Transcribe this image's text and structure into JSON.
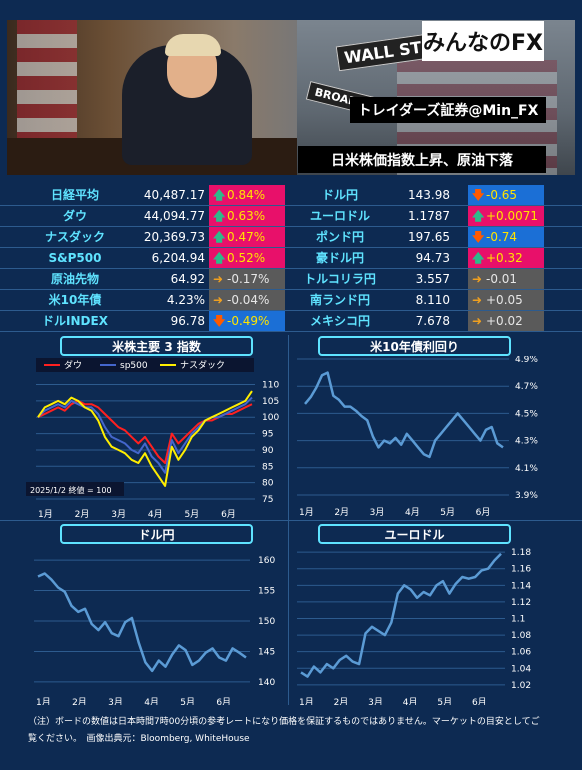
{
  "header": {
    "logo": "みんなのFX",
    "badge_account": "トレイダーズ証券@Min_FX",
    "headline": "日米株価指数上昇、原油下落",
    "sign_wall": "WALL ST",
    "sign_broad": "BROAD ST"
  },
  "table": {
    "rows": [
      {
        "l_name": "日経平均",
        "l_val": "40,487.17",
        "l_chg": "0.84%",
        "l_dir": "up",
        "r_name": "ドル円",
        "r_val": "143.98",
        "r_chg": "-0.65",
        "r_dir": "down"
      },
      {
        "l_name": "ダウ",
        "l_val": "44,094.77",
        "l_chg": "0.63%",
        "l_dir": "up",
        "r_name": "ユーロドル",
        "r_val": "1.1787",
        "r_chg": "+0.0071",
        "r_dir": "up"
      },
      {
        "l_name": "ナスダック",
        "l_val": "20,369.73",
        "l_chg": "0.47%",
        "l_dir": "up",
        "r_name": "ポンド円",
        "r_val": "197.65",
        "r_chg": "-0.74",
        "r_dir": "down"
      },
      {
        "l_name": "S&P500",
        "l_val": "6,204.94",
        "l_chg": "0.52%",
        "l_dir": "up",
        "r_name": "豪ドル円",
        "r_val": "94.73",
        "r_chg": "+0.32",
        "r_dir": "up"
      },
      {
        "l_name": "原油先物",
        "l_val": "64.92",
        "l_chg": "-0.17%",
        "l_dir": "flat",
        "r_name": "トルコリラ円",
        "r_val": "3.557",
        "r_chg": "-0.01",
        "r_dir": "flat"
      },
      {
        "l_name": "米10年債",
        "l_val": "4.23%",
        "l_chg": "-0.04%",
        "l_dir": "flat",
        "r_name": "南ランド円",
        "r_val": "8.110",
        "r_chg": "+0.05",
        "r_dir": "flat"
      },
      {
        "l_name": "ドルINDEX",
        "l_val": "96.78",
        "l_chg": "-0.49%",
        "l_dir": "down",
        "r_name": "メキシコ円",
        "r_val": "7.678",
        "r_chg": "+0.02",
        "r_dir": "flat"
      }
    ]
  },
  "colors": {
    "up": "#e8106a",
    "down": "#1b6fd6",
    "flat": "#5a5a5a",
    "accent": "#5fe3ff",
    "line": "#5b9bd5"
  },
  "chart_data": [
    {
      "type": "line",
      "title": "米株主要 3 指数",
      "annotation": "2025/1/2 終値 = 100",
      "x_ticks": [
        "1月",
        "2月",
        "3月",
        "4月",
        "5月",
        "6月"
      ],
      "y_ticks": [
        75,
        80,
        85,
        90,
        95,
        100,
        105,
        110
      ],
      "ylim": [
        75,
        112
      ],
      "series": [
        {
          "name": "ダウ",
          "color": "#ff2020",
          "values": [
            100,
            101,
            102,
            103,
            102,
            104,
            105,
            104,
            104,
            103,
            101,
            99,
            97,
            96,
            94,
            92,
            94,
            91,
            88,
            86,
            95,
            92,
            94,
            96,
            98,
            99,
            99,
            100,
            101,
            101,
            102,
            103,
            104
          ]
        },
        {
          "name": "sp500",
          "color": "#4466cc",
          "values": [
            100,
            102,
            103,
            104,
            103,
            105,
            104,
            103,
            103,
            101,
            97,
            94,
            93,
            92,
            90,
            89,
            92,
            88,
            86,
            83,
            93,
            89,
            92,
            95,
            97,
            99,
            100,
            100,
            101,
            102,
            103,
            104,
            106
          ]
        },
        {
          "name": "ナスダック",
          "color": "#ffee00",
          "values": [
            100,
            103,
            104,
            105,
            104,
            106,
            105,
            103,
            102,
            99,
            94,
            91,
            90,
            89,
            87,
            86,
            89,
            85,
            82,
            79,
            91,
            87,
            90,
            94,
            96,
            99,
            100,
            101,
            102,
            103,
            104,
            105,
            108
          ]
        }
      ]
    },
    {
      "type": "line",
      "title": "米10年債利回り",
      "x_ticks": [
        "1月",
        "2月",
        "3月",
        "4月",
        "5月",
        "6月"
      ],
      "y_ticks": [
        "3.9%",
        "4.1%",
        "4.3%",
        "4.5%",
        "4.7%",
        "4.9%"
      ],
      "ylim": [
        3.9,
        4.9
      ],
      "series": [
        {
          "values": [
            4.57,
            4.62,
            4.69,
            4.78,
            4.8,
            4.63,
            4.6,
            4.55,
            4.55,
            4.52,
            4.48,
            4.45,
            4.33,
            4.25,
            4.3,
            4.28,
            4.32,
            4.27,
            4.35,
            4.3,
            4.25,
            4.2,
            4.18,
            4.3,
            4.35,
            4.4,
            4.45,
            4.5,
            4.45,
            4.4,
            4.35,
            4.3,
            4.38,
            4.4,
            4.28,
            4.25
          ]
        }
      ]
    },
    {
      "type": "line",
      "title": "ドル円",
      "x_ticks": [
        "1月",
        "2月",
        "3月",
        "4月",
        "5月",
        "6月"
      ],
      "y_ticks": [
        140,
        145,
        150,
        155,
        160
      ],
      "ylim": [
        139,
        161
      ],
      "series": [
        {
          "values": [
            157.3,
            157.8,
            156.8,
            155.5,
            154.8,
            152.5,
            151.5,
            152.0,
            149.5,
            148.5,
            149.8,
            148.0,
            147.5,
            149.8,
            150.5,
            146.5,
            143.2,
            141.8,
            143.5,
            142.5,
            144.5,
            146.0,
            145.2,
            142.8,
            143.5,
            144.8,
            145.5,
            144.0,
            143.5,
            145.5,
            144.8,
            144.0
          ]
        }
      ]
    },
    {
      "type": "line",
      "title": "ユーロドル",
      "x_ticks": [
        "1月",
        "2月",
        "3月",
        "4月",
        "5月",
        "6月"
      ],
      "y_ticks": [
        1.02,
        1.04,
        1.06,
        1.08,
        1.1,
        1.12,
        1.14,
        1.16,
        1.18
      ],
      "ylim": [
        1.015,
        1.185
      ],
      "series": [
        {
          "values": [
            1.035,
            1.03,
            1.042,
            1.035,
            1.045,
            1.04,
            1.05,
            1.055,
            1.048,
            1.045,
            1.082,
            1.09,
            1.085,
            1.08,
            1.095,
            1.13,
            1.14,
            1.135,
            1.125,
            1.132,
            1.128,
            1.14,
            1.145,
            1.13,
            1.142,
            1.15,
            1.148,
            1.15,
            1.158,
            1.16,
            1.17,
            1.178
          ]
        }
      ]
    }
  ],
  "footer": {
    "note": "（注）ボードの数値は日本時間7時00分頃の参考レートになり価格を保証するものではありません。マーケットの目安としてご覧ください。　画像出典元：Bloomberg, WhiteHouse"
  }
}
